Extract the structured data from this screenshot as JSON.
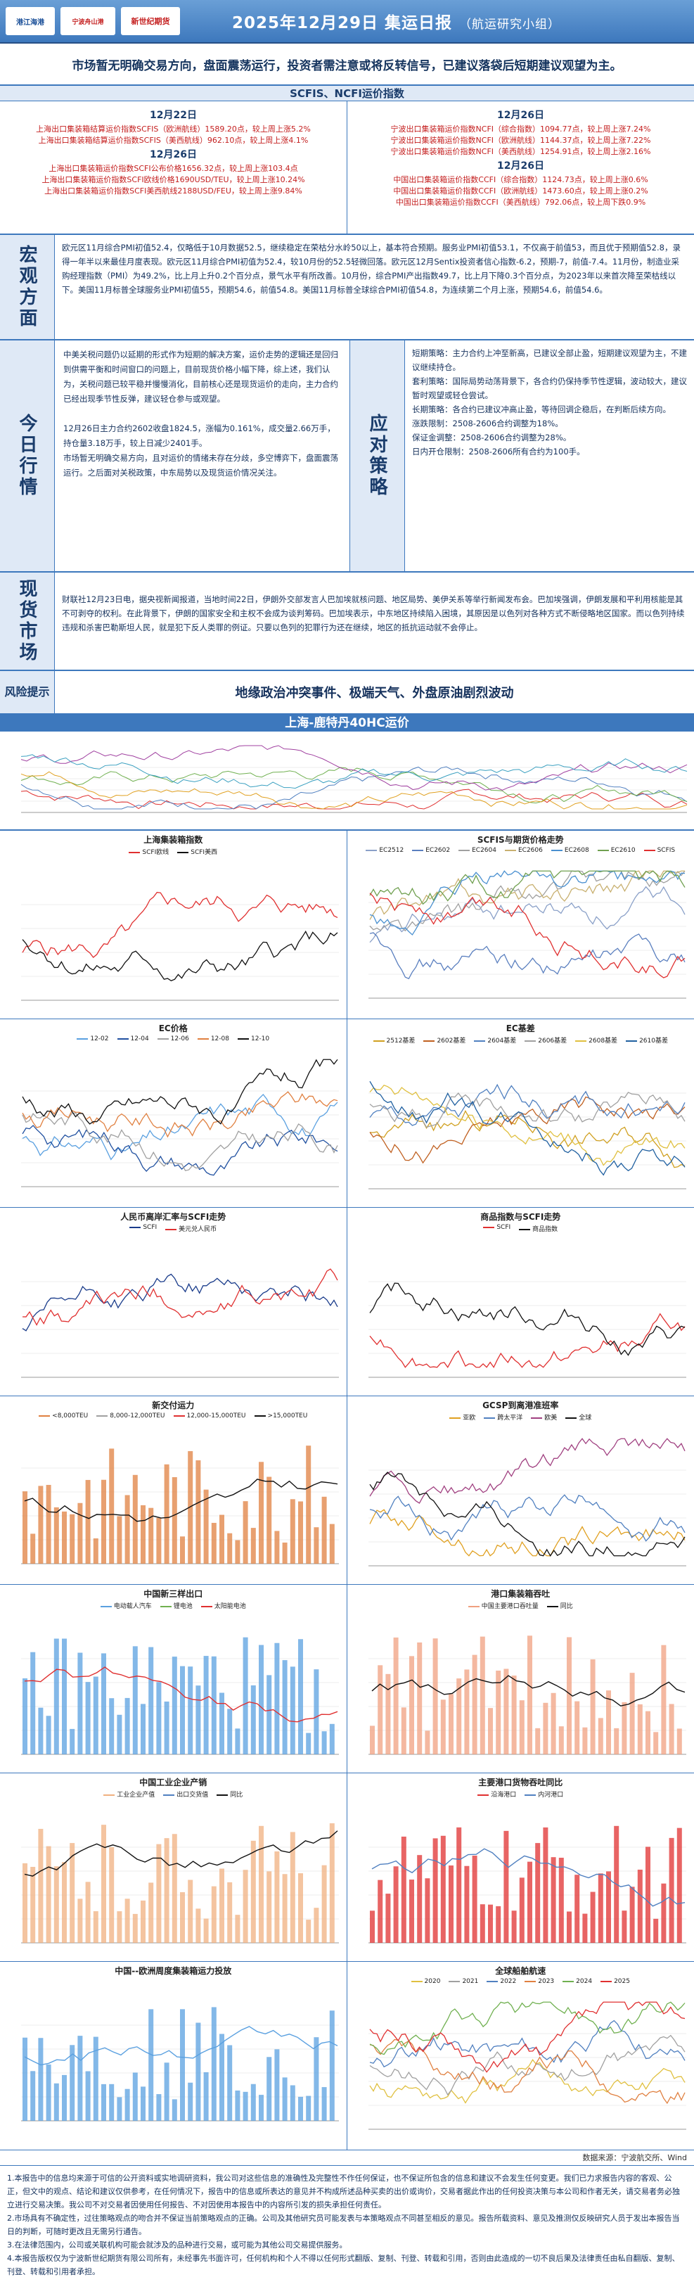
{
  "header": {
    "logo1": "港江海港",
    "logo2": "宁波舟山港",
    "logo3": "新世纪期货",
    "title": "2025年12月29日 集运日报",
    "subtitle": "（航运研究小组）"
  },
  "banner": "市场暂无明确交易方向，盘面震荡运行，投资者需注意或将反转信号，已建议落袋后短期建议观望为主。",
  "index_bar": "SCFIS、NCFI运价指数",
  "index_left": {
    "d1": "12月22日",
    "l1": [
      "上海出口集装箱结算运价指数SCFIS（欧洲航线）1589.20点，较上周上涨5.2%",
      "上海出口集装箱结算运价指数SCFIS（美西航线）962.10点，较上周上涨4.1%"
    ],
    "d2": "12月26日",
    "l2": [
      "上海出口集装箱运价指数SCFI公布价格1656.32点，较上周上涨103.4点",
      "上海出口集装箱运价指数SCFI欧线价格1690USD/TEU，较上周上涨10.24%",
      "上海出口集装箱运价指数SCFI美西航线2188USD/FEU，较上周上涨9.84%"
    ]
  },
  "index_right": {
    "d1": "12月26日",
    "l1": [
      "宁波出口集装箱运价指数NCFI（综合指数）1094.77点，较上周上涨7.24%",
      "宁波出口集装箱运价指数NCFI（欧洲航线）1144.37点，较上周上涨7.22%",
      "宁波出口集装箱运价指数NCFI（美西航线）1254.91点，较上周上涨2.16%"
    ],
    "d2": "12月26日",
    "l2": [
      "中国出口集装箱运价指数CCFI（综合指数）1124.73点，较上周上涨0.6%",
      "中国出口集装箱运价指数CCFI（欧洲航线）1473.60点，较上周上涨0.2%",
      "中国出口集装箱运价指数CCFI（美西航线）792.06点，较上周下跌0.9%"
    ]
  },
  "macro": {
    "label": "宏观方面",
    "text": "欧元区11月综合PMI初值52.4，仅略低于10月数据52.5，继续稳定在荣枯分水岭50以上，基本符合预期。服务业PMI初值53.1，不仅高于前值53，而且优于预期值52.8，录得一年半以来最佳月度表现。欧元区11月综合PMI初值为52.4，较10月份的52.5轻微回落。欧元区12月Sentix投资者信心指数-6.2，预期-7，前值-7.4。11月份，制造业采购经理指数（PMI）为49.2%，比上月上升0.2个百分点，景气水平有所改善。10月份，综合PMI产出指数49.7，比上月下降0.3个百分点，为2023年以来首次降至荣枯线以下。美国11月标普全球服务业PMI初值55，预期54.6，前值54.8。美国11月标普全球综合PMI初值54.8，为连续第二个月上涨，预期54.6，前值54.6。"
  },
  "today": {
    "label": "今日行情",
    "p1": "中美关税问题仍以延期的形式作为短期的解决方案，运价走势的逻辑还是回归到供需平衡和时间窗口的问题上，目前现货价格小幅下降，综上述，我们认为，关税问题已较平稳并慢慢消化，目前核心还是现货运价的走向，主力合约已经出现季节性反弹，建议轻仓参与或观望。",
    "p2": "12月26日主力合约2602收盘1824.5，涨幅为0.161%，成交量2.66万手，持仓量3.18万手，较上日减少2401手。",
    "p3": "市场暂无明确交易方向，且对运价的情绪未存在分歧，多空博弈下，盘面震荡运行。之后面对关税政策，中东局势以及现货运价情况关注。"
  },
  "strategy": {
    "label": "应对策略",
    "items": [
      "短期策略：主力合约上冲至新高，已建议全部止盈，短期建议观望为主，不建议继续持仓。",
      "套利策略：国际局势动荡背景下，各合约仍保持季节性逻辑，波动较大，建议暂时观望或轻仓尝试。",
      "长期策略：各合约已建议冲高止盈，等待回调企稳后，在判断后续方向。",
      "涨跌限制：2508-2606合约调整为18%。",
      "保证金调整：2508-2606合约调整为28%。",
      "日内开仓限制：2508-2606所有合约为100手。"
    ]
  },
  "spot": {
    "label": "现货市场",
    "text": "财联社12月23日电，据央视新闻报道，当地时间22日，伊朗外交部发言人巴加埃就核问题、地区局势、美伊关系等举行新闻发布会。巴加埃强调，伊朗发展和平利用核能是其不可剥夺的权利。在此背景下，伊朗的国家安全和主权不会成为谈判筹码。巴加埃表示，中东地区持续陷入困境，其原因是以色列对各种方式不断侵略地区国家。而以色列持续违规和杀害巴勒斯坦人民，就是犯下反人类罪的例证。只要以色列的犯罪行为还在继续，地区的抵抗运动就不会停止。"
  },
  "risk": {
    "label": "风险提示",
    "text": "地缘政治冲突事件、极端天气、外盘原油剧烈波动"
  },
  "route_title": "上海-鹿特丹40HC运价",
  "charts": [
    {
      "title": "上海集装箱指数",
      "legend": [
        "SCFI欧线",
        "SCFI美西"
      ],
      "colors": [
        "#e03030",
        "#111111"
      ]
    },
    {
      "title": "SCFIS与期货价格走势",
      "legend": [
        "EC2512",
        "EC2602",
        "EC2604",
        "EC2606",
        "EC2608",
        "EC2610",
        "SCFIS"
      ],
      "colors": [
        "#8aa0c8",
        "#5a7fbf",
        "#a0a0a0",
        "#c8b070",
        "#4a90d0",
        "#70a050",
        "#e03030"
      ]
    },
    {
      "title": "EC价格",
      "legend": [
        "12-02",
        "12-04",
        "12-06",
        "12-08",
        "12-10"
      ],
      "colors": [
        "#5aa0e0",
        "#2050a0",
        "#a0a0a0",
        "#e08040",
        "#111111"
      ]
    },
    {
      "title": "EC基差",
      "legend": [
        "2512基差",
        "2602基差",
        "2604基差",
        "2606基差",
        "2608基差",
        "2610基差"
      ],
      "colors": [
        "#d0a020",
        "#c06020",
        "#5080c0",
        "#a0a0a0",
        "#e0c040",
        "#2060a0"
      ]
    },
    {
      "title": "人民币离岸汇率与SCFI走势",
      "legend": [
        "SCFI",
        "美元兑人民币"
      ],
      "colors": [
        "#1a3c8b",
        "#e03030"
      ]
    },
    {
      "title": "商品指数与SCFI走势",
      "legend": [
        "SCFI",
        "商品指数"
      ],
      "colors": [
        "#e03030",
        "#111111"
      ]
    },
    {
      "title": "新交付运力",
      "legend": [
        "<8,000TEU",
        "8,000-12,000TEU",
        "12,000-15,000TEU",
        ">15,000TEU"
      ],
      "colors": [
        "#e08040",
        "#a0a0a0",
        "#e03030",
        "#111111"
      ]
    },
    {
      "title": "GCSP到离港准班率",
      "legend": [
        "亚欧",
        "跨太平洋",
        "欧美",
        "全球"
      ],
      "colors": [
        "#e0a020",
        "#5080c0",
        "#a04080",
        "#111111"
      ]
    },
    {
      "title": "中国新三样出口",
      "legend": [
        "电动载人汽车",
        "锂电池",
        "太阳能电池"
      ],
      "colors": [
        "#5aa0e0",
        "#70b050",
        "#e03030"
      ]
    },
    {
      "title": "港口集装箱吞吐",
      "legend": [
        "中国主要港口吞吐量",
        "同比"
      ],
      "colors": [
        "#f0a080",
        "#111111"
      ]
    },
    {
      "title": "中国工业企业产销",
      "legend": [
        "工业企业产值",
        "出口交货值",
        "同比"
      ],
      "colors": [
        "#f0b080",
        "#5080c0",
        "#111111"
      ]
    },
    {
      "title": "主要港口货物吞吐同比",
      "legend": [
        "沿海港口",
        "内河港口"
      ],
      "colors": [
        "#e03030",
        "#5080c0"
      ]
    },
    {
      "title": "中国--欧洲周度集装箱运力投放",
      "legend": [],
      "colors": [
        "#5aa0e0"
      ]
    },
    {
      "title": "全球船舶航速",
      "legend": [
        "2020",
        "2021",
        "2022",
        "2023",
        "2024",
        "2025"
      ],
      "colors": [
        "#e0c040",
        "#a0a0a0",
        "#5080c0",
        "#e08040",
        "#70b050",
        "#e03030"
      ]
    }
  ],
  "source": "数据来源：宁波航交所、Wind",
  "disclaimer": [
    "1.本报告中的信息均来源于可信的公开资料或实地调研资料，我公司对这些信息的准确性及完整性不作任何保证，也不保证所包含的信息和建议不会发生任何变更。我们已力求报告内容的客观、公正，但文中的观点、结论和建议仅供参考，在任何情况下，报告中的信息或所表达的意见并不构成所述品种买卖的出价或询价，交易者据此作出的任何投资决策与本公司和作者无关，请交易者务必独立进行交易决策。我公司不对交易者因使用任何报告、不对因使用本报告中的内容所引发的损失承担任何责任。",
    "2.市场具有不确定性，过往策略观点的吻合并不保证当前策略观点的正确。公司及其他研究员可能发表与本策略观点不同甚至相反的意见。报告所载资料、意见及推测仅反映研究人员于发出本报告当日的判断，可随时更改且无需另行通告。",
    "3.在法律范围内，公司或关联机构可能会就涉及的品种进行交易，或可能为其他公司交易提供服务。",
    "4.本报告版权仅为宁波新世纪期货有限公司所有，未经事先书面许可，任何机构和个人不得以任何形式翻版、复制、刊登、转载和引用，否则由此造成的一切不良后果及法律责任由私自翻版、复制、刊登、转载和引用者承担。"
  ]
}
